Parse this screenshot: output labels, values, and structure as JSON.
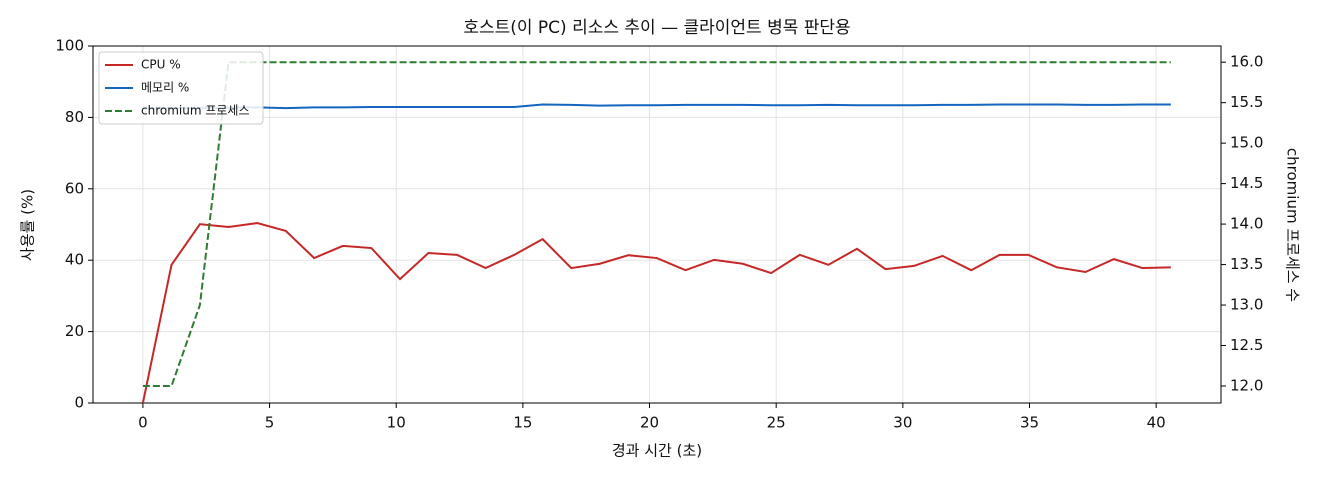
{
  "chart_data": {
    "type": "line",
    "title": "호스트(이 PC) 리소스 추이 — 클라이언트 병목 판단용",
    "x_label": "경과 시간 (초)",
    "y_label": "사용률 (%)",
    "y2_label": "chromium 프로세스 수",
    "x": [
      0,
      1.13,
      2.25,
      3.38,
      4.51,
      5.64,
      6.76,
      7.89,
      9.02,
      10.15,
      11.27,
      12.4,
      13.53,
      14.66,
      15.78,
      16.91,
      18.04,
      19.17,
      20.29,
      21.42,
      22.55,
      23.68,
      24.8,
      25.93,
      27.06,
      28.19,
      29.31,
      30.44,
      31.57,
      32.7,
      33.82,
      34.95,
      36.08,
      37.21,
      38.33,
      39.46,
      40.58
    ],
    "series": [
      {
        "name": "CPU %",
        "color": "#c62828",
        "linestyle": "solid",
        "values": [
          0,
          38.7,
          50.1,
          49.3,
          50.4,
          48.2,
          40.6,
          44,
          43.4,
          34.7,
          42,
          41.5,
          37.8,
          41.5,
          45.9,
          37.8,
          39,
          41.4,
          40.6,
          37.2,
          40.1,
          39,
          36.4,
          41.5,
          38.7,
          43.2,
          37.5,
          38.4,
          41.2,
          37.2,
          41.5,
          41.5,
          38,
          36.7,
          40.3,
          37.8,
          38
        ]
      },
      {
        "name": "메모리 %",
        "color": "#1565c0",
        "linestyle": "solid",
        "values": [
          82.5,
          82.6,
          82.7,
          82.7,
          82.8,
          82.6,
          82.8,
          82.8,
          82.9,
          82.9,
          82.9,
          82.9,
          82.9,
          82.9,
          83.6,
          83.5,
          83.3,
          83.4,
          83.4,
          83.5,
          83.5,
          83.5,
          83.4,
          83.4,
          83.5,
          83.4,
          83.4,
          83.4,
          83.5,
          83.5,
          83.6,
          83.6,
          83.6,
          83.5,
          83.5,
          83.6,
          83.6
        ]
      },
      {
        "name": "chromium 프로세스",
        "color": "#2e7d32",
        "linestyle": "dashed",
        "axis": "y2",
        "values": [
          12,
          12,
          13,
          16,
          16,
          16,
          16,
          16,
          16,
          16,
          16,
          16,
          16,
          16,
          16,
          16,
          16,
          16,
          16,
          16,
          16,
          16,
          16,
          16,
          16,
          16,
          16,
          16,
          16,
          16,
          16,
          16,
          16,
          16,
          16,
          16,
          16
        ]
      }
    ],
    "xlim": [
      -1.97,
      42.56
    ],
    "xticks": [
      0,
      5,
      10,
      15,
      20,
      25,
      30,
      35,
      40
    ],
    "ylim": [
      0,
      100
    ],
    "yticks": [
      0,
      20,
      40,
      60,
      80,
      100
    ],
    "y2lim": [
      11.79,
      16.2
    ],
    "y2ticks": [
      {
        "value": 12,
        "label": "12.0"
      },
      {
        "value": 12.5,
        "label": "12.5"
      },
      {
        "value": 13,
        "label": "13.0"
      },
      {
        "value": 13.5,
        "label": "13.5"
      },
      {
        "value": 14,
        "label": "14.0"
      },
      {
        "value": 14.5,
        "label": "14.5"
      },
      {
        "value": 15,
        "label": "15.0"
      },
      {
        "value": 15.5,
        "label": "15.5"
      },
      {
        "value": 16,
        "label": "16.0"
      }
    ],
    "grid": true,
    "legend": "upper-left"
  }
}
